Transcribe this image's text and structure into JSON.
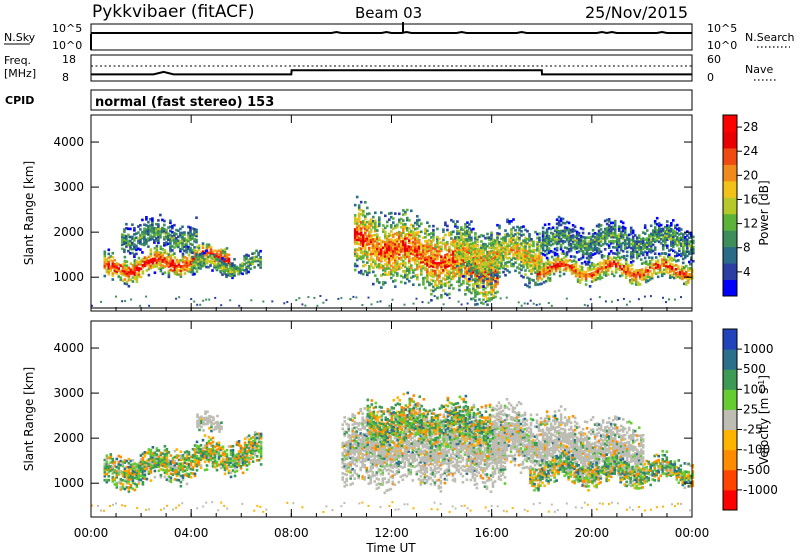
{
  "header": {
    "station": "Pykkvibaer (fitACF)",
    "beam": "Beam 03",
    "date": "25/Nov/2015"
  },
  "summary_panels": {
    "nsky": {
      "label": "N.Sky",
      "ticks": [
        "10^5",
        "10^0"
      ],
      "right_label": "N.Search",
      "right_ticks": [
        "10^5",
        "10^0"
      ]
    },
    "freq": {
      "label_lines": [
        "Freq.",
        "[MHz]"
      ],
      "ticks": [
        "18",
        "8"
      ],
      "right_label": "Nave",
      "right_ticks": [
        "60",
        "0"
      ],
      "series_x_hours": [
        0,
        2.5,
        2.9,
        3.3,
        8.0,
        8.01,
        18.0,
        18.01,
        24
      ],
      "series_nave": [
        7,
        7,
        10,
        7,
        7,
        12,
        12,
        7,
        7
      ]
    },
    "cpid": {
      "label": "CPID",
      "text": "normal (fast stereo) 153"
    }
  },
  "chart_data": [
    {
      "type": "heatmap",
      "name": "power",
      "xlabel": "Time UT",
      "ylabel": "Slant Range [km]",
      "xlim_hours": [
        0,
        24
      ],
      "ylim_km": [
        250,
        4600
      ],
      "yticks": [
        1000,
        2000,
        3000,
        4000
      ],
      "colorbar": {
        "label": "Power [dB]",
        "ticks": [
          "4",
          "8",
          "12",
          "16",
          "20",
          "24",
          "28"
        ],
        "colors": [
          "#0000ff",
          "#2b3fa3",
          "#2a6b8a",
          "#3d8e5b",
          "#5bb33a",
          "#b7c92a",
          "#f2c21b",
          "#f08a1b",
          "#ee4a12",
          "#e80000",
          "#ff0000"
        ]
      },
      "echo_regions": [
        {
          "t0": 0.5,
          "t1": 5.5,
          "r_center": 1150,
          "r_width": 350,
          "slope": 60,
          "level": 0.85
        },
        {
          "t0": 1.2,
          "t1": 4.2,
          "r_center": 1900,
          "r_width": 400,
          "slope": 0,
          "level": 0.35
        },
        {
          "t0": 4.0,
          "t1": 6.8,
          "r_center": 1250,
          "r_width": 250,
          "slope": 0,
          "level": 0.45
        },
        {
          "t0": 10.5,
          "t1": 16.2,
          "r_center": 1800,
          "r_width": 900,
          "slope": -120,
          "level": 0.8
        },
        {
          "t0": 14.5,
          "t1": 18.0,
          "r_center": 1500,
          "r_width": 700,
          "slope": 0,
          "level": 0.6
        },
        {
          "t0": 17.8,
          "t1": 24.0,
          "r_center": 1150,
          "r_width": 300,
          "slope": 0,
          "level": 0.8
        },
        {
          "t0": 18.0,
          "t1": 24.0,
          "r_center": 1800,
          "r_width": 450,
          "slope": 0,
          "level": 0.35
        }
      ]
    },
    {
      "type": "heatmap",
      "name": "velocity",
      "xlabel": "Time UT",
      "ylabel": "Slant Range [km]",
      "xlim_hours": [
        0,
        24
      ],
      "ylim_km": [
        250,
        4600
      ],
      "yticks": [
        1000,
        2000,
        3000,
        4000
      ],
      "xticks": [
        "00:00",
        "04:00",
        "08:00",
        "12:00",
        "16:00",
        "20:00",
        "00:00"
      ],
      "colorbar": {
        "label": "Velocity [m s-1]",
        "ticks": [
          "1000",
          "500",
          "100",
          "25",
          "-25",
          "-100",
          "-500",
          "-1000"
        ],
        "colors": [
          "#2244bb",
          "#2a6f8c",
          "#3d9a55",
          "#66cc33",
          "#bdbdb3",
          "#ffb400",
          "#ff8c00",
          "#ff4400",
          "#ff0000"
        ]
      },
      "echo_regions": [
        {
          "t0": 0.5,
          "t1": 6.8,
          "r_center": 1200,
          "r_width": 450,
          "slope": 80,
          "kind": "mixed"
        },
        {
          "t0": 4.2,
          "t1": 5.2,
          "r_center": 2250,
          "r_width": 250,
          "slope": 0,
          "kind": "ground"
        },
        {
          "t0": 10.0,
          "t1": 16.5,
          "r_center": 1700,
          "r_width": 900,
          "slope": 0,
          "kind": "ground"
        },
        {
          "t0": 11.0,
          "t1": 16.0,
          "r_center": 2300,
          "r_width": 600,
          "slope": 0,
          "kind": "mixed"
        },
        {
          "t0": 16.0,
          "t1": 22.0,
          "r_center": 2000,
          "r_width": 800,
          "slope": -60,
          "kind": "ground"
        },
        {
          "t0": 17.5,
          "t1": 24.0,
          "r_center": 1250,
          "r_width": 350,
          "slope": 0,
          "kind": "mixed"
        }
      ]
    }
  ]
}
